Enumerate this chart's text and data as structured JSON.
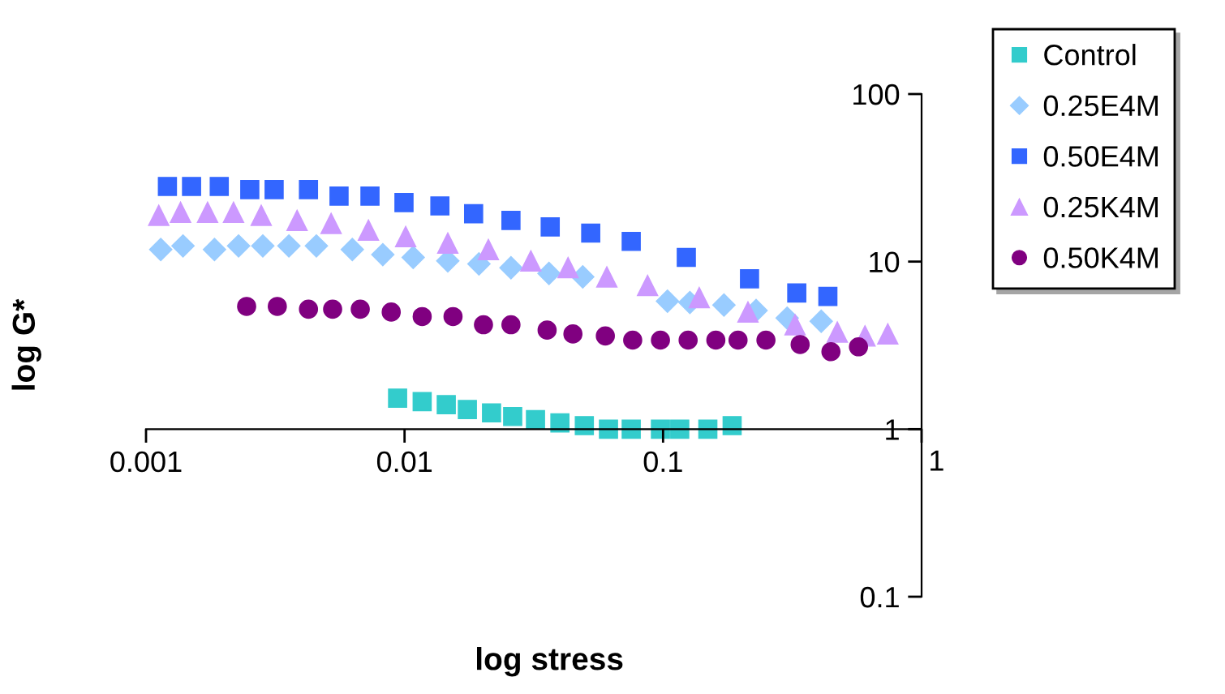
{
  "chart_data": {
    "type": "scatter",
    "xlabel": "log stress",
    "ylabel": "log G*",
    "log": "xy",
    "xlim": [
      0.001,
      1
    ],
    "ylim": [
      0.1,
      100
    ],
    "xticks": [
      0.001,
      0.01,
      0.1,
      1
    ],
    "yticks": [
      0.1,
      1,
      10,
      100
    ],
    "grid": false,
    "legend": "right",
    "series": [
      {
        "name": "Control",
        "color": "#33cccc",
        "marker": "square",
        "x": [
          0.0094,
          0.0117,
          0.0145,
          0.0175,
          0.0217,
          0.0262,
          0.0321,
          0.0399,
          0.0496,
          0.0615,
          0.0753,
          0.0977,
          0.116,
          0.149,
          0.185
        ],
        "values": [
          1.53,
          1.46,
          1.4,
          1.31,
          1.25,
          1.19,
          1.14,
          1.09,
          1.05,
          1.0,
          1.0,
          1.0,
          1.0,
          1.0,
          1.05
        ]
      },
      {
        "name": "0.25E4M",
        "color": "#99ccff",
        "marker": "diamond",
        "x": [
          0.00114,
          0.00139,
          0.00184,
          0.00228,
          0.00283,
          0.00357,
          0.00456,
          0.00628,
          0.00824,
          0.0108,
          0.0147,
          0.0194,
          0.0258,
          0.0362,
          0.0489,
          0.104,
          0.127,
          0.172,
          0.229,
          0.302,
          0.409
        ],
        "values": [
          11.8,
          12.4,
          11.8,
          12.4,
          12.4,
          12.4,
          12.4,
          11.8,
          11.0,
          10.6,
          10.1,
          9.7,
          9.2,
          8.5,
          8.1,
          5.8,
          5.7,
          5.5,
          5.1,
          4.6,
          4.4
        ]
      },
      {
        "name": "0.50E4M",
        "color": "#3366ff",
        "marker": "square",
        "x": [
          0.00121,
          0.0015,
          0.00192,
          0.00252,
          0.00313,
          0.00425,
          0.00558,
          0.00735,
          0.00995,
          0.0137,
          0.0185,
          0.0258,
          0.0366,
          0.0525,
          0.0753,
          0.123,
          0.216,
          0.329,
          0.434
        ],
        "values": [
          28.1,
          28.1,
          28.1,
          26.9,
          26.9,
          26.9,
          24.6,
          24.6,
          22.5,
          21.5,
          19.3,
          17.6,
          16.1,
          14.8,
          13.2,
          10.6,
          7.9,
          6.5,
          6.2
        ]
      },
      {
        "name": "0.25K4M",
        "color": "#cc99ff",
        "marker": "triangle",
        "x": [
          0.00112,
          0.00136,
          0.00173,
          0.00218,
          0.00279,
          0.00384,
          0.0052,
          0.00725,
          0.0101,
          0.0147,
          0.0211,
          0.0308,
          0.0429,
          0.0606,
          0.0871,
          0.138,
          0.213,
          0.324,
          0.472,
          0.604,
          0.74
        ],
        "values": [
          18.9,
          19.7,
          19.7,
          19.7,
          18.9,
          17.6,
          16.9,
          15.4,
          14.1,
          12.9,
          11.8,
          10.1,
          9.2,
          8.1,
          7.2,
          6.1,
          5.0,
          4.2,
          3.8,
          3.6,
          3.7
        ]
      },
      {
        "name": "0.50K4M",
        "color": "#800080",
        "marker": "circle",
        "x": [
          0.00245,
          0.00322,
          0.00425,
          0.00527,
          0.00674,
          0.00888,
          0.0117,
          0.0154,
          0.0202,
          0.0258,
          0.0356,
          0.0448,
          0.0598,
          0.0763,
          0.0977,
          0.125,
          0.16,
          0.195,
          0.25,
          0.339,
          0.446,
          0.57
        ],
        "values": [
          5.4,
          5.4,
          5.2,
          5.2,
          5.2,
          5.0,
          4.7,
          4.7,
          4.2,
          4.2,
          3.9,
          3.7,
          3.6,
          3.4,
          3.4,
          3.4,
          3.4,
          3.4,
          3.4,
          3.2,
          2.9,
          3.1
        ]
      }
    ]
  }
}
